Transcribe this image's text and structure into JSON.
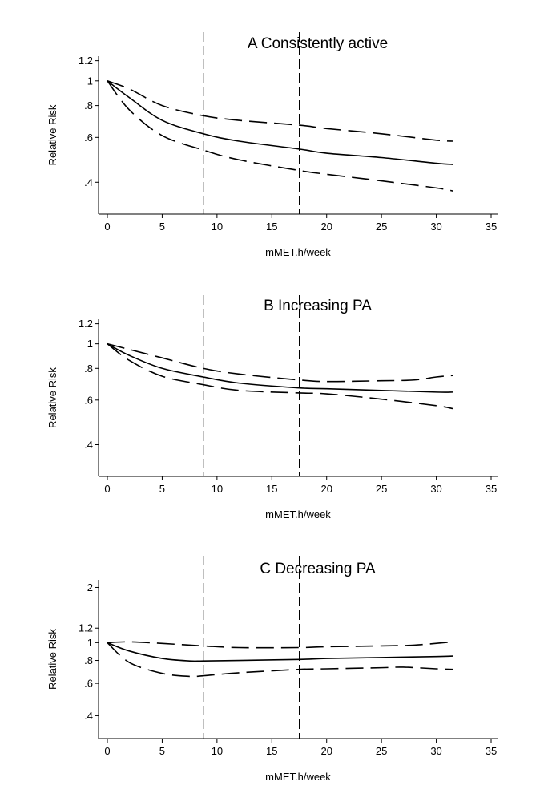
{
  "chart_data": [
    {
      "type": "line",
      "title": "A  Consistently active",
      "xlabel": "mMET.h/week",
      "ylabel": "Relative Risk",
      "xlim": [
        0,
        35
      ],
      "xticks": [
        0,
        5,
        10,
        15,
        20,
        25,
        30,
        35
      ],
      "ylog": true,
      "ylim": [
        0.3,
        1.25
      ],
      "yticks": [
        0.4,
        0.6,
        0.8,
        1,
        1.2
      ],
      "ytick_labels": [
        ".4",
        ".6",
        ".8",
        "1",
        "1.2"
      ],
      "reference_lines_x": [
        8.75,
        17.5
      ],
      "series": [
        {
          "name": "estimate",
          "style": "solid",
          "x": [
            0,
            2,
            5,
            8.75,
            12,
            17.5,
            20,
            25,
            30,
            31.5
          ],
          "values": [
            1,
            0.86,
            0.7,
            0.62,
            0.58,
            0.54,
            0.52,
            0.5,
            0.475,
            0.47
          ]
        },
        {
          "name": "upper 95% CI",
          "style": "dashed",
          "x": [
            0,
            2,
            5,
            8.75,
            12,
            17.5,
            20,
            25,
            30,
            31.5
          ],
          "values": [
            1,
            0.93,
            0.8,
            0.73,
            0.7,
            0.67,
            0.65,
            0.62,
            0.585,
            0.58
          ]
        },
        {
          "name": "lower 95% CI",
          "style": "dashed",
          "x": [
            0,
            2,
            5,
            8.75,
            12,
            17.5,
            20,
            25,
            30,
            31.5
          ],
          "values": [
            1,
            0.77,
            0.61,
            0.535,
            0.49,
            0.445,
            0.43,
            0.405,
            0.38,
            0.37
          ]
        }
      ]
    },
    {
      "type": "line",
      "title": "B  Increasing PA",
      "xlabel": "mMET.h/week",
      "ylabel": "Relative Risk",
      "xlim": [
        0,
        35
      ],
      "xticks": [
        0,
        5,
        10,
        15,
        20,
        25,
        30,
        35
      ],
      "ylog": true,
      "ylim": [
        0.3,
        1.25
      ],
      "yticks": [
        0.4,
        0.6,
        0.8,
        1,
        1.2
      ],
      "ytick_labels": [
        ".4",
        ".6",
        ".8",
        "1",
        "1.2"
      ],
      "reference_lines_x": [
        8.75,
        17.5
      ],
      "series": [
        {
          "name": "estimate",
          "style": "solid",
          "x": [
            0,
            2,
            5,
            8.75,
            12,
            17.5,
            20,
            25,
            30,
            31.5
          ],
          "values": [
            1,
            0.9,
            0.8,
            0.74,
            0.7,
            0.67,
            0.665,
            0.655,
            0.645,
            0.645
          ]
        },
        {
          "name": "upper 95% CI",
          "style": "dashed",
          "x": [
            0,
            2,
            5,
            8.75,
            12,
            17.5,
            20,
            25,
            28,
            30,
            31.5
          ],
          "values": [
            1,
            0.95,
            0.88,
            0.8,
            0.76,
            0.72,
            0.71,
            0.715,
            0.72,
            0.74,
            0.75
          ]
        },
        {
          "name": "lower 95% CI",
          "style": "dashed",
          "x": [
            0,
            2,
            5,
            8.75,
            12,
            17.5,
            20,
            25,
            30,
            31.5
          ],
          "values": [
            1,
            0.86,
            0.745,
            0.69,
            0.655,
            0.64,
            0.635,
            0.605,
            0.57,
            0.555
          ]
        }
      ]
    },
    {
      "type": "line",
      "title": "C  Decreasing PA",
      "xlabel": "mMET.h/week",
      "ylabel": "Relative Risk",
      "xlim": [
        0,
        35
      ],
      "xticks": [
        0,
        5,
        10,
        15,
        20,
        25,
        30,
        35
      ],
      "ylog": true,
      "ylim": [
        0.3,
        2.2
      ],
      "yticks": [
        0.4,
        0.6,
        0.8,
        1,
        1.2,
        2
      ],
      "ytick_labels": [
        ".4",
        ".6",
        ".8",
        "1",
        "1.2",
        "2"
      ],
      "reference_lines_x": [
        8.75,
        17.5
      ],
      "series": [
        {
          "name": "estimate",
          "style": "solid",
          "x": [
            0,
            2,
            5,
            7.5,
            8.75,
            12,
            17.5,
            20,
            25,
            30,
            31.5
          ],
          "values": [
            1,
            0.9,
            0.82,
            0.795,
            0.795,
            0.8,
            0.81,
            0.82,
            0.83,
            0.84,
            0.845
          ]
        },
        {
          "name": "upper 95% CI",
          "style": "dashed",
          "x": [
            0,
            2,
            5,
            8.75,
            12,
            17.5,
            20,
            25,
            28,
            31.5
          ],
          "values": [
            1,
            1.01,
            0.99,
            0.96,
            0.94,
            0.94,
            0.95,
            0.96,
            0.97,
            1.01
          ]
        },
        {
          "name": "lower 95% CI",
          "style": "dashed",
          "x": [
            0,
            2,
            5,
            7.5,
            8.75,
            12,
            17.5,
            20,
            25,
            27,
            30,
            31.5
          ],
          "values": [
            1,
            0.78,
            0.68,
            0.655,
            0.66,
            0.685,
            0.715,
            0.72,
            0.73,
            0.735,
            0.72,
            0.715
          ]
        }
      ]
    }
  ]
}
